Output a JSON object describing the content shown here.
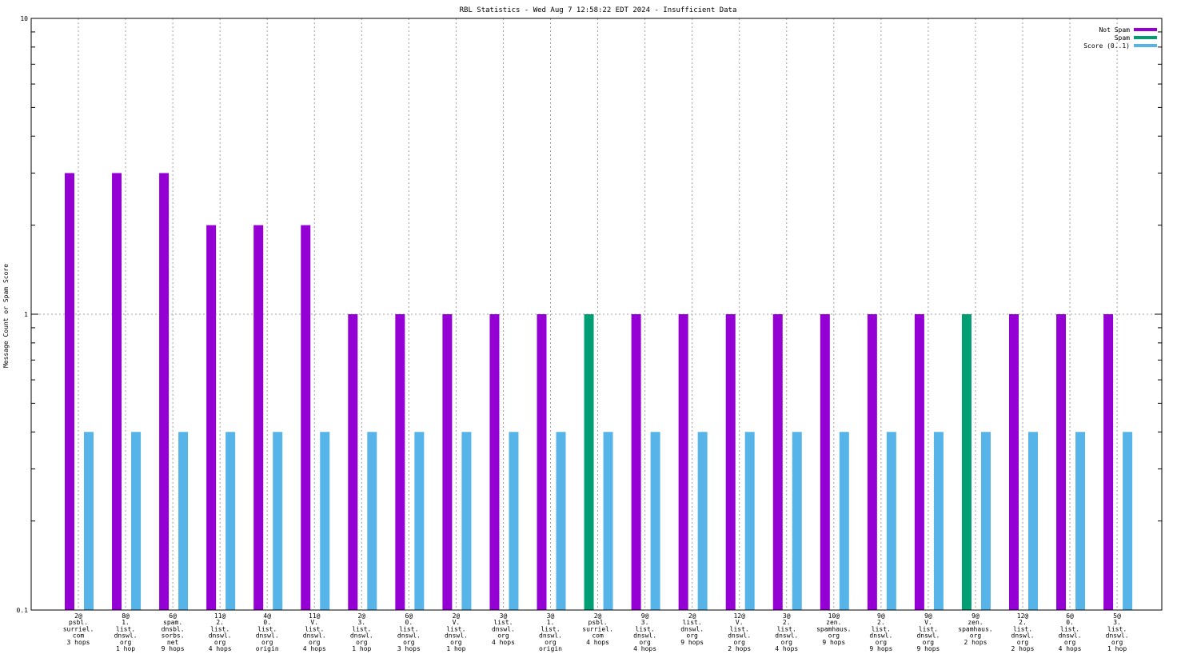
{
  "chart_data": {
    "type": "bar",
    "title": "RBL Statistics - Wed Aug  7 12:58:22 EDT 2024 - Insufficient Data",
    "xlabel": "",
    "ylabel": "Message Count or Spam Score",
    "yscale": "log",
    "ylim": [
      0.1,
      10
    ],
    "ytick_labels": [
      "0.1",
      "1",
      "10"
    ],
    "grid": true,
    "legend_position": "top-right",
    "categories": [
      [
        "2@",
        "psbl.",
        "surriel.",
        "com",
        "3 hops"
      ],
      [
        "8@",
        "1.",
        "list.",
        "dnswl.",
        "org",
        "1 hop"
      ],
      [
        "6@",
        "spam.",
        "dnsbl.",
        "sorbs.",
        "net",
        "9 hops"
      ],
      [
        "11@",
        "2.",
        "list.",
        "dnswl.",
        "org",
        "4 hops"
      ],
      [
        "4@",
        "0.",
        "list.",
        "dnswl.",
        "org",
        "origin"
      ],
      [
        "11@",
        "V.",
        "list.",
        "dnswl.",
        "org",
        "4 hops"
      ],
      [
        "2@",
        "3.",
        "list.",
        "dnswl.",
        "org",
        "1 hop"
      ],
      [
        "6@",
        "0.",
        "list.",
        "dnswl.",
        "org",
        "3 hops"
      ],
      [
        "2@",
        "V.",
        "list.",
        "dnswl.",
        "org",
        "1 hop"
      ],
      [
        "3@",
        "list.",
        "dnswl.",
        "org",
        "4 hops"
      ],
      [
        "3@",
        "1.",
        "list.",
        "dnswl.",
        "org",
        "origin"
      ],
      [
        "2@",
        "psbl.",
        "surriel.",
        "com",
        "4 hops"
      ],
      [
        "9@",
        "3.",
        "list.",
        "dnswl.",
        "org",
        "4 hops"
      ],
      [
        "2@",
        "list.",
        "dnswl.",
        "org",
        "9 hops"
      ],
      [
        "12@",
        "V.",
        "list.",
        "dnswl.",
        "org",
        "2 hops"
      ],
      [
        "3@",
        "2.",
        "list.",
        "dnswl.",
        "org",
        "4 hops"
      ],
      [
        "10@",
        "zen.",
        "spamhaus.",
        "org",
        "9 hops"
      ],
      [
        "9@",
        "2.",
        "list.",
        "dnswl.",
        "org",
        "9 hops"
      ],
      [
        "9@",
        "V.",
        "list.",
        "dnswl.",
        "org",
        "9 hops"
      ],
      [
        "9@",
        "zen.",
        "spamhaus.",
        "org",
        "2 hops"
      ],
      [
        "12@",
        "2.",
        "list.",
        "dnswl.",
        "org",
        "2 hops"
      ],
      [
        "6@",
        "0.",
        "list.",
        "dnswl.",
        "org",
        "4 hops"
      ],
      [
        "5@",
        "3.",
        "list.",
        "dnswl.",
        "org",
        "1 hop"
      ]
    ],
    "series": [
      {
        "name": "Not Spam",
        "color": "#9400d3",
        "values": [
          3,
          3,
          3,
          2,
          2,
          2,
          1,
          1,
          1,
          1,
          1,
          0,
          1,
          1,
          1,
          1,
          1,
          1,
          1,
          0,
          1,
          1,
          1
        ]
      },
      {
        "name": "Spam",
        "color": "#009e73",
        "values": [
          0,
          0,
          0,
          0,
          0,
          0,
          0,
          0,
          0,
          0,
          0,
          1,
          0,
          0,
          0,
          0,
          0,
          0,
          0,
          1,
          0,
          0,
          0
        ]
      },
      {
        "name": "Score (0..1)",
        "color": "#56b4e9",
        "values": [
          0.4,
          0.4,
          0.4,
          0.4,
          0.4,
          0.4,
          0.4,
          0.4,
          0.4,
          0.4,
          0.4,
          0.4,
          0.4,
          0.4,
          0.4,
          0.4,
          0.4,
          0.4,
          0.4,
          0.4,
          0.4,
          0.4,
          0.4
        ]
      }
    ]
  }
}
